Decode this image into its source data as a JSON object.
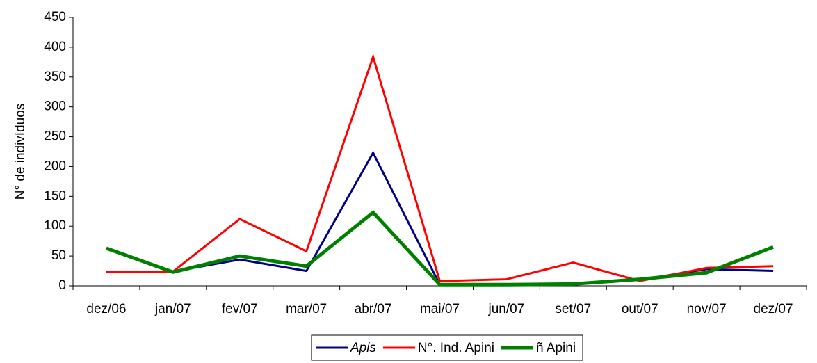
{
  "chart_data": {
    "type": "line",
    "y_label": "N° de indivíduos",
    "categories": [
      "dez/06",
      "jan/07",
      "fev/07",
      "mar/07",
      "abr/07",
      "mai/07",
      "jun/07",
      "set/07",
      "out/07",
      "nov/07",
      "dez/07"
    ],
    "series": [
      {
        "name": "Apis",
        "color": "#000080",
        "line_width": 3,
        "font_style": "italic",
        "values": [
          null,
          24,
          44,
          25,
          223,
          2,
          2,
          3,
          10,
          28,
          25
        ]
      },
      {
        "name": "N°. Ind. Apini",
        "color": "#ff0000",
        "line_width": 3,
        "values": [
          23,
          24,
          112,
          58,
          384,
          8,
          11,
          39,
          8,
          30,
          33
        ]
      },
      {
        "name": "ñ Apini",
        "color": "#008000",
        "line_width": 5,
        "values": [
          63,
          23,
          50,
          33,
          123,
          2,
          2,
          3,
          11,
          22,
          65
        ]
      }
    ],
    "ylim": [
      0,
      450
    ],
    "yticks": [
      0,
      50,
      100,
      150,
      200,
      250,
      300,
      350,
      400,
      450
    ],
    "grid": false,
    "legend": "bottom"
  }
}
